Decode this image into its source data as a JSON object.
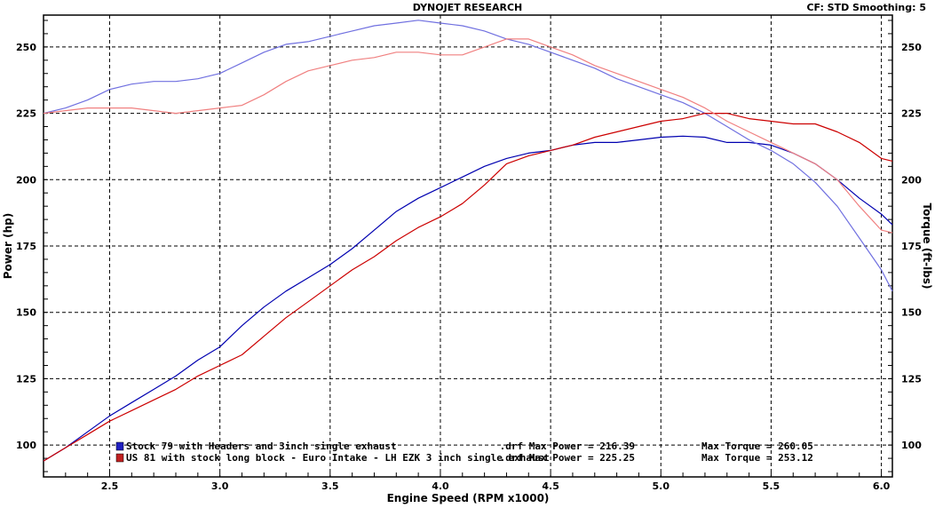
{
  "header": {
    "title": "DYNOJET RESEARCH",
    "cf": "CF: STD  Smoothing: 5"
  },
  "chart_data": {
    "type": "line",
    "xlabel": "Engine Speed (RPM x1000)",
    "ylabel_left": "Power (hp)",
    "ylabel_right": "Torque (ft-lbs)",
    "xlim": [
      2.2,
      6.05
    ],
    "ylim": [
      88,
      262
    ],
    "xticks": [
      2.5,
      3.0,
      3.5,
      4.0,
      4.5,
      5.0,
      5.5,
      6.0
    ],
    "xtick_labels": [
      "2.5",
      "3.0",
      "3.5",
      "4.0",
      "4.5",
      "5.0",
      "5.5",
      "6.0"
    ],
    "yticks": [
      100,
      125,
      150,
      175,
      200,
      225,
      250
    ],
    "ytick_labels": [
      "100",
      "125",
      "150",
      "175",
      "200",
      "225",
      "250"
    ],
    "grid": true,
    "legend_position": "bottom",
    "series": [
      {
        "name": "Stock 79 with Headers and 3inch single exhaust",
        "color": "#0000b0",
        "kind": "power",
        "x": [
          2.2,
          2.3,
          2.4,
          2.5,
          2.6,
          2.7,
          2.8,
          2.9,
          3.0,
          3.1,
          3.2,
          3.3,
          3.4,
          3.5,
          3.6,
          3.7,
          3.8,
          3.9,
          4.0,
          4.1,
          4.2,
          4.3,
          4.4,
          4.5,
          4.6,
          4.7,
          4.8,
          4.9,
          5.0,
          5.1,
          5.2,
          5.3,
          5.4,
          5.5,
          5.6,
          5.7,
          5.8,
          5.9,
          6.0,
          6.05
        ],
        "y": [
          94,
          99,
          105,
          111,
          116,
          121,
          126,
          132,
          137,
          145,
          152,
          158,
          163,
          168,
          174,
          181,
          188,
          193,
          197,
          201,
          205,
          208,
          210,
          211,
          213,
          214,
          214,
          215,
          216,
          216.4,
          216,
          214,
          214,
          213,
          210,
          206,
          200,
          193,
          187,
          183
        ]
      },
      {
        "name": "Stock 79 with Headers and 3inch single exhaust",
        "color": "#7070e0",
        "kind": "torque",
        "x": [
          2.2,
          2.3,
          2.4,
          2.5,
          2.6,
          2.7,
          2.8,
          2.9,
          3.0,
          3.1,
          3.2,
          3.3,
          3.4,
          3.5,
          3.6,
          3.7,
          3.8,
          3.9,
          4.0,
          4.1,
          4.2,
          4.3,
          4.4,
          4.5,
          4.6,
          4.7,
          4.8,
          4.9,
          5.0,
          5.1,
          5.2,
          5.3,
          5.4,
          5.5,
          5.6,
          5.7,
          5.8,
          5.9,
          6.0,
          6.05
        ],
        "y": [
          225,
          227,
          230,
          234,
          236,
          237,
          237,
          238,
          240,
          244,
          248,
          251,
          252,
          254,
          256,
          258,
          259,
          260.05,
          259,
          258,
          256,
          253,
          251,
          248,
          245,
          242,
          238,
          235,
          232,
          229,
          225,
          220,
          215,
          211,
          206,
          199,
          190,
          178,
          166,
          158
        ]
      },
      {
        "name": "US 81 with stock long block - Euro Intake - LH EZK 3 inch single exhaust",
        "color": "#cc0000",
        "kind": "power",
        "x": [
          2.2,
          2.3,
          2.4,
          2.5,
          2.6,
          2.7,
          2.8,
          2.9,
          3.0,
          3.1,
          3.2,
          3.3,
          3.4,
          3.5,
          3.6,
          3.7,
          3.8,
          3.9,
          4.0,
          4.1,
          4.2,
          4.3,
          4.4,
          4.5,
          4.6,
          4.7,
          4.8,
          4.9,
          5.0,
          5.1,
          5.2,
          5.3,
          5.4,
          5.5,
          5.6,
          5.7,
          5.8,
          5.9,
          6.0,
          6.05
        ],
        "y": [
          94,
          99,
          104,
          109,
          113,
          117,
          121,
          126,
          130,
          134,
          141,
          148,
          154,
          160,
          166,
          171,
          177,
          182,
          186,
          191,
          198,
          206,
          209,
          211,
          213,
          216,
          218,
          220,
          222,
          223,
          225,
          225,
          223,
          222,
          221,
          221,
          218,
          214,
          208,
          207
        ]
      },
      {
        "name": "US 81 with stock long block - Euro Intake - LH EZK 3 inch single exhaust",
        "color": "#f08080",
        "kind": "torque",
        "x": [
          2.2,
          2.3,
          2.4,
          2.5,
          2.6,
          2.7,
          2.8,
          2.9,
          3.0,
          3.1,
          3.2,
          3.3,
          3.4,
          3.5,
          3.6,
          3.7,
          3.8,
          3.9,
          4.0,
          4.1,
          4.2,
          4.3,
          4.4,
          4.5,
          4.6,
          4.7,
          4.8,
          4.9,
          5.0,
          5.1,
          5.2,
          5.3,
          5.4,
          5.5,
          5.6,
          5.7,
          5.8,
          5.9,
          6.0,
          6.05
        ],
        "y": [
          225,
          226,
          227,
          227,
          227,
          226,
          225,
          226,
          227,
          228,
          232,
          237,
          241,
          243,
          245,
          246,
          248,
          248,
          247,
          247,
          250,
          253,
          253,
          250,
          247,
          243,
          240,
          237,
          234,
          231,
          227,
          222,
          218,
          214,
          210,
          206,
          200,
          190,
          181,
          180
        ]
      }
    ],
    "legend": [
      {
        "swatch": "#2020c0",
        "label": "Stock 79 with Headers and 3inch single exhaust",
        "suffix": ".drf Max Power = 216.39",
        "torque": "Max Torque = 260.05"
      },
      {
        "swatch": "#c02020",
        "label": "US 81 with stock long block - Euro Intake - LH EZK 3 inch single exhaust",
        "suffix": ".drf Max Power = 225.25",
        "torque": "Max Torque = 253.12"
      }
    ]
  }
}
